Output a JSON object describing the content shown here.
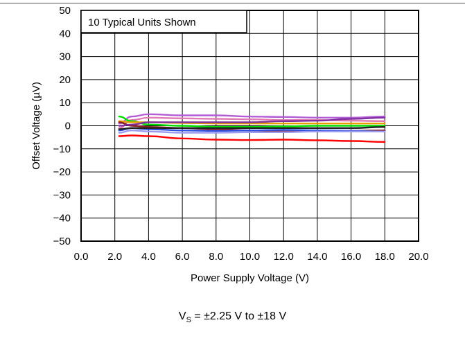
{
  "chart_data": {
    "type": "line",
    "annotation": "10 Typical Units Shown",
    "xlabel": "Power Supply Voltage (V)",
    "ylabel": "Offset Voltage (µV)",
    "xlim": [
      0,
      20
    ],
    "ylim": [
      -50,
      50
    ],
    "x_ticks": [
      0,
      2,
      4,
      6,
      8,
      10,
      12,
      14,
      16,
      18,
      20
    ],
    "x_tick_labels": [
      "0.0",
      "2.0",
      "4.0",
      "6.0",
      "8.0",
      "10.0",
      "12.0",
      "14.0",
      "16.0",
      "18.0",
      "20.0"
    ],
    "y_ticks": [
      -50,
      -40,
      -30,
      -20,
      -10,
      0,
      10,
      20,
      30,
      40,
      50
    ],
    "y_tick_labels": [
      "−50",
      "−40",
      "−30",
      "−20",
      "−10",
      "0",
      "10",
      "20",
      "30",
      "40",
      "50"
    ],
    "grid": true,
    "x": [
      2.25,
      3,
      4,
      6,
      8,
      10,
      12,
      14,
      16,
      18
    ],
    "series": [
      {
        "color": "#ff0000",
        "values": [
          -4.5,
          -4.2,
          -4.5,
          -5.5,
          -6,
          -6.2,
          -6,
          -6.3,
          -6.6,
          -7
        ]
      },
      {
        "color": "#b35cd6",
        "values": [
          1,
          4,
          5,
          4.5,
          4.5,
          4,
          3.8,
          3.5,
          3.5,
          4
        ]
      },
      {
        "color": "#e07ab3",
        "values": [
          -1,
          2.5,
          3.5,
          3.2,
          3,
          2.8,
          2.5,
          2.5,
          2.2,
          2
        ]
      },
      {
        "color": "#00dd00",
        "values": [
          4,
          2,
          0.5,
          0,
          -0.5,
          -0.5,
          -0.3,
          0,
          0,
          0
        ]
      },
      {
        "color": "#e8a000",
        "values": [
          2,
          1.5,
          1.5,
          1.2,
          1,
          1,
          1,
          1,
          1,
          1
        ]
      },
      {
        "color": "#8b2020",
        "values": [
          1.5,
          0,
          -0.5,
          -1,
          -1.5,
          -2,
          -2.5,
          -2.5,
          -2.2,
          -2
        ]
      },
      {
        "color": "#3050e0",
        "values": [
          -2,
          -1,
          -1.5,
          -2,
          -2.2,
          -2,
          -1.8,
          -2,
          -2.2,
          -2.5
        ]
      },
      {
        "color": "#9b9bf0",
        "values": [
          -3,
          -2,
          -2.5,
          -3,
          -3,
          -2.8,
          -2.8,
          -2.5,
          -2.5,
          -2.5
        ]
      },
      {
        "color": "#8030a0",
        "values": [
          0,
          0.5,
          1.5,
          1.5,
          1.5,
          1.5,
          2,
          2.2,
          3,
          3.5
        ]
      },
      {
        "color": "#222222",
        "values": [
          -1.5,
          -1,
          -1,
          -1,
          -1,
          -1,
          -1,
          -1,
          -1,
          -0.5
        ]
      }
    ]
  },
  "footnote": {
    "prefix": "V",
    "subscript": "S",
    "suffix": " = ±2.25 V to ±18 V"
  }
}
